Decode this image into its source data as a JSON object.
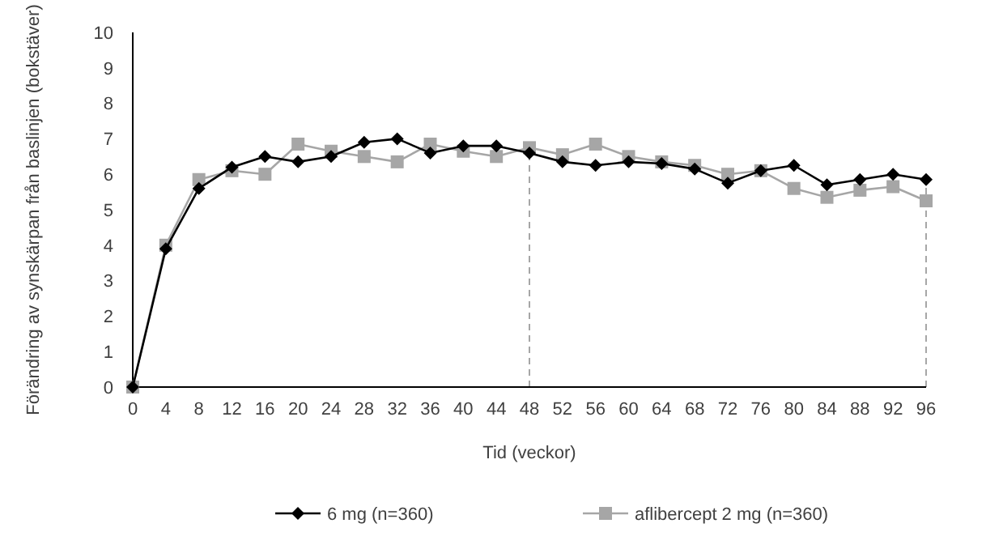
{
  "chart_data": {
    "type": "line",
    "xlabel": "Tid (veckor)",
    "ylabel": "Förändring av synskärpan från baslinjen (bokstäver)",
    "x": [
      0,
      4,
      8,
      12,
      16,
      20,
      24,
      28,
      32,
      36,
      40,
      44,
      48,
      52,
      56,
      60,
      64,
      68,
      72,
      76,
      80,
      84,
      88,
      92,
      96
    ],
    "xlim": [
      0,
      96
    ],
    "xticks": [
      0,
      4,
      8,
      12,
      16,
      20,
      24,
      28,
      32,
      36,
      40,
      44,
      48,
      52,
      56,
      60,
      64,
      68,
      72,
      76,
      80,
      84,
      88,
      92,
      96
    ],
    "ylim": [
      0,
      10
    ],
    "yticks": [
      0,
      1,
      2,
      3,
      4,
      5,
      6,
      7,
      8,
      9,
      10
    ],
    "grid": false,
    "legend": "bottom",
    "series": [
      {
        "name": "6 mg (n=360)",
        "color": "#000000",
        "marker": "diamond",
        "values": [
          0,
          3.9,
          5.6,
          6.2,
          6.5,
          6.35,
          6.5,
          6.9,
          7.0,
          6.6,
          6.8,
          6.8,
          6.6,
          6.35,
          6.25,
          6.35,
          6.3,
          6.15,
          5.75,
          6.1,
          6.25,
          5.7,
          5.85,
          6.0,
          5.85
        ]
      },
      {
        "name": "aflibercept 2 mg (n=360)",
        "color": "#a6a6a6",
        "marker": "square",
        "values": [
          0,
          4.0,
          5.85,
          6.1,
          6.0,
          6.85,
          6.65,
          6.5,
          6.35,
          6.85,
          6.65,
          6.5,
          6.75,
          6.55,
          6.85,
          6.5,
          6.35,
          6.25,
          6.0,
          6.1,
          5.6,
          5.35,
          5.55,
          5.65,
          5.25
        ]
      }
    ],
    "ref_lines": [
      {
        "axis": "x",
        "value": 48,
        "color": "#a6a6a6",
        "line_style": "dashed"
      },
      {
        "axis": "x",
        "value": 96,
        "color": "#a6a6a6",
        "line_style": "dashed"
      }
    ]
  }
}
